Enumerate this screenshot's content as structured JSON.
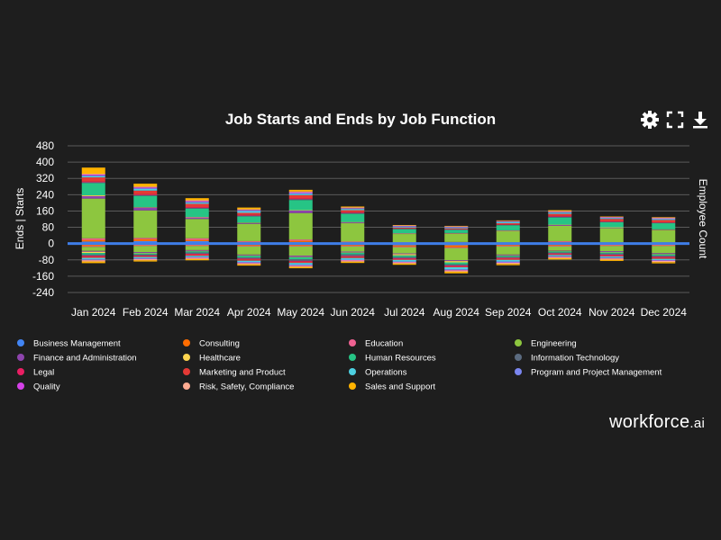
{
  "brand": {
    "name": "workforce",
    "suffix": ".ai"
  },
  "toolbar": {
    "settings_icon": "gear-icon",
    "fullscreen_icon": "expand-icon",
    "download_icon": "download-icon"
  },
  "chart_data": {
    "type": "bar",
    "stacked": true,
    "title": "Job Starts and Ends by Job Function",
    "ylabel": "Ends | Starts",
    "y2label": "Employee Count",
    "ylim": [
      -240,
      480
    ],
    "yticks": [
      480,
      400,
      320,
      240,
      160,
      80,
      0,
      -80,
      -160,
      -240
    ],
    "grid": true,
    "legend_position": "bottom",
    "categories": [
      "Jan 2024",
      "Feb 2024",
      "Mar 2024",
      "Apr 2024",
      "May 2024",
      "Jun 2024",
      "Jul 2024",
      "Aug 2024",
      "Sep 2024",
      "Oct 2024",
      "Nov 2024",
      "Dec 2024"
    ],
    "series": [
      {
        "name": "Business Management",
        "color": "#4285f4",
        "values": [
          10,
          12,
          12,
          6,
          8,
          4,
          3,
          4,
          2,
          6,
          2,
          2
        ],
        "ends": [
          -2,
          -2,
          -2,
          -4,
          -4,
          -4,
          -8,
          -8,
          -4,
          -4,
          -2,
          -2
        ]
      },
      {
        "name": "Consulting",
        "color": "#ff6d00",
        "values": [
          8,
          10,
          6,
          2,
          6,
          2,
          2,
          2,
          2,
          2,
          2,
          2
        ],
        "ends": [
          -10,
          -6,
          -6,
          -6,
          -6,
          -6,
          -6,
          -10,
          -6,
          -6,
          -6,
          -6
        ]
      },
      {
        "name": "Education",
        "color": "#f06292",
        "values": [
          8,
          6,
          8,
          4,
          6,
          4,
          2,
          2,
          2,
          4,
          2,
          2
        ],
        "ends": [
          -4,
          -4,
          -4,
          -4,
          -4,
          -4,
          -4,
          -4,
          -4,
          -4,
          -4,
          -4
        ]
      },
      {
        "name": "Engineering",
        "color": "#8dc63f",
        "values": [
          195,
          135,
          95,
          85,
          130,
          90,
          40,
          40,
          55,
          75,
          70,
          60
        ],
        "ends": [
          -20,
          -30,
          -20,
          -40,
          -45,
          -25,
          -30,
          -60,
          -40,
          -20,
          -25,
          -35
        ]
      },
      {
        "name": "Finance and Administration",
        "color": "#8e44ad",
        "values": [
          12,
          14,
          8,
          4,
          12,
          4,
          2,
          2,
          2,
          4,
          2,
          2
        ],
        "ends": [
          -4,
          -4,
          -4,
          -4,
          -6,
          -4,
          -4,
          -4,
          -4,
          -2,
          -4,
          -4
        ]
      },
      {
        "name": "Healthcare",
        "color": "#ffd54f",
        "values": [
          4,
          2,
          2,
          2,
          2,
          2,
          2,
          2,
          2,
          2,
          2,
          2
        ],
        "ends": [
          -6,
          -2,
          -2,
          -2,
          -2,
          -2,
          -6,
          -6,
          -2,
          -2,
          -2,
          -2
        ]
      },
      {
        "name": "Human Resources",
        "color": "#26c485",
        "values": [
          60,
          55,
          40,
          30,
          50,
          40,
          20,
          15,
          25,
          35,
          25,
          30
        ],
        "ends": [
          -8,
          -6,
          -6,
          -8,
          -10,
          -8,
          -8,
          -10,
          -6,
          -6,
          -6,
          -6
        ]
      },
      {
        "name": "Information Technology",
        "color": "#5b6b80",
        "values": [
          4,
          4,
          4,
          4,
          4,
          4,
          2,
          2,
          2,
          4,
          2,
          2
        ],
        "ends": [
          -6,
          -4,
          -6,
          -6,
          -8,
          -8,
          -6,
          -6,
          -4,
          -4,
          -6,
          -6
        ]
      },
      {
        "name": "Legal",
        "color": "#e91e63",
        "values": [
          4,
          4,
          4,
          4,
          4,
          4,
          2,
          2,
          2,
          4,
          2,
          2
        ],
        "ends": [
          -4,
          -4,
          -4,
          -4,
          -4,
          -4,
          -4,
          -4,
          -4,
          -4,
          -4,
          -4
        ]
      },
      {
        "name": "Marketing and Product",
        "color": "#e53935",
        "values": [
          20,
          18,
          16,
          10,
          16,
          10,
          4,
          4,
          6,
          10,
          12,
          12
        ],
        "ends": [
          -6,
          -4,
          -6,
          -6,
          -6,
          -6,
          -4,
          -4,
          -6,
          -4,
          -4,
          -6
        ]
      },
      {
        "name": "Operations",
        "color": "#4dd0e1",
        "values": [
          6,
          8,
          6,
          8,
          6,
          6,
          4,
          4,
          6,
          6,
          4,
          4
        ],
        "ends": [
          -8,
          -6,
          -6,
          -6,
          -8,
          -8,
          -8,
          -10,
          -8,
          -6,
          -6,
          -6
        ]
      },
      {
        "name": "Program and Project Management",
        "color": "#7b86f0",
        "values": [
          4,
          4,
          4,
          4,
          4,
          2,
          2,
          2,
          2,
          2,
          2,
          2
        ],
        "ends": [
          -2,
          -2,
          -2,
          -4,
          -4,
          -2,
          -2,
          -4,
          -4,
          -2,
          -2,
          -2
        ]
      },
      {
        "name": "Quality",
        "color": "#d541e8",
        "values": [
          4,
          4,
          4,
          2,
          4,
          2,
          2,
          2,
          2,
          2,
          2,
          2
        ],
        "ends": [
          -2,
          -2,
          -2,
          -2,
          -2,
          -2,
          -2,
          -2,
          -2,
          -2,
          -2,
          -2
        ]
      },
      {
        "name": "Risk, Safety, Compliance",
        "color": "#ffab91",
        "values": [
          4,
          4,
          4,
          4,
          4,
          4,
          2,
          2,
          2,
          4,
          2,
          4
        ],
        "ends": [
          -6,
          -6,
          -6,
          -6,
          -6,
          -6,
          -6,
          -6,
          -6,
          -6,
          -6,
          -6
        ]
      },
      {
        "name": "Sales and Support",
        "color": "#ffb300",
        "values": [
          30,
          14,
          10,
          8,
          8,
          4,
          2,
          2,
          2,
          4,
          2,
          2
        ],
        "ends": [
          -8,
          -6,
          -6,
          -6,
          -6,
          -6,
          -6,
          -8,
          -6,
          -6,
          -6,
          -6
        ]
      }
    ]
  }
}
